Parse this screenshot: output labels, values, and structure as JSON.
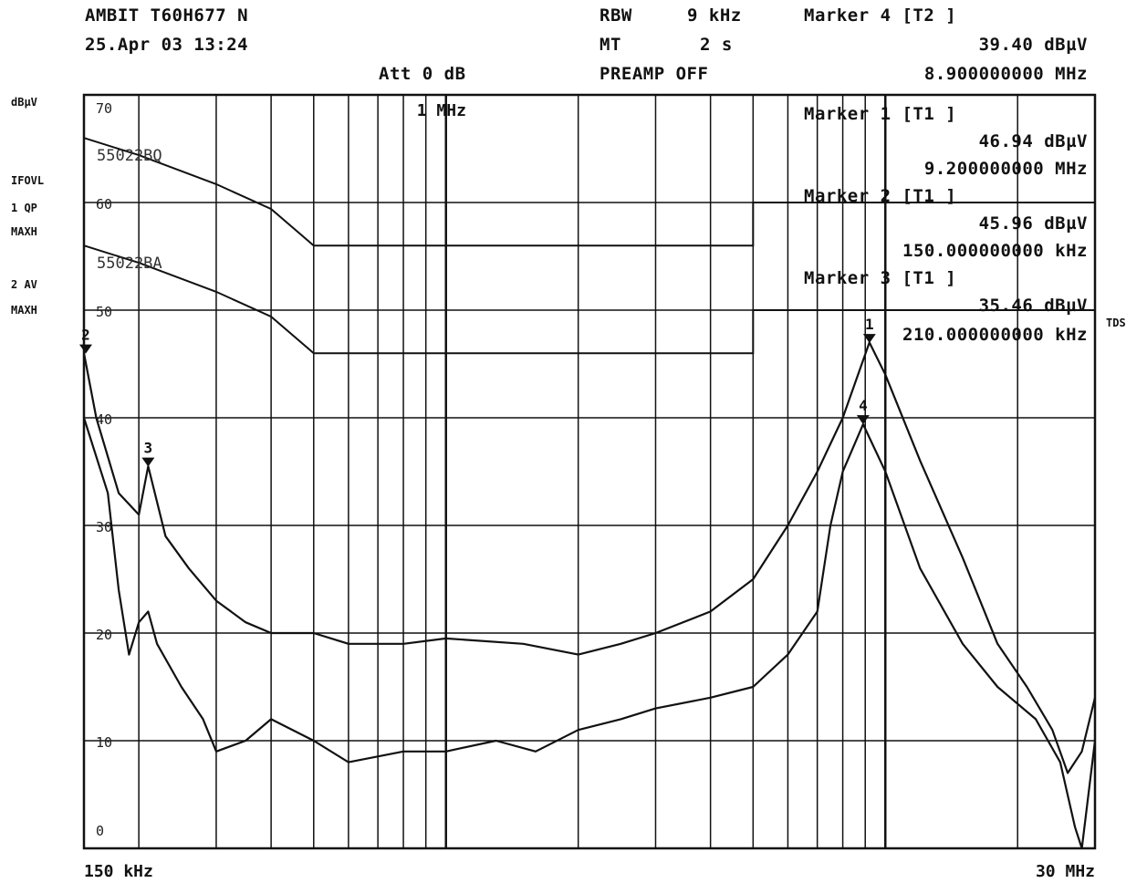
{
  "header": {
    "device": "AMBIT T60H677 N",
    "date": "25.Apr 03 13:24",
    "att": "Att 0 dB",
    "rbw_label": "RBW",
    "rbw_value": "9 kHz",
    "mt_label": "MT",
    "mt_value": "2 s",
    "preamp": "PREAMP OFF",
    "marker_title": "Marker 4 [T2 ]",
    "marker_level": "39.40 dBµV",
    "marker_freq": "8.900000000 MHz"
  },
  "side": {
    "unit": "dBµV",
    "ifovl": "IFOVL",
    "trace1": "1 QP",
    "trace1_mode": "MAXH",
    "trace2": "2 AV",
    "trace2_mode": "MAXH",
    "tds": "TDS"
  },
  "markers_box": [
    {
      "title": "Marker 1 [T1 ]",
      "level": "46.94 dBµV",
      "freq": "9.200000000 MHz"
    },
    {
      "title": "Marker 2 [T1 ]",
      "level": "45.96 dBµV",
      "freq": "150.000000000 kHz"
    },
    {
      "title": "Marker 3 [T1 ]",
      "level": "35.46 dBµV",
      "freq": "210.000000000 kHz"
    }
  ],
  "colors": {
    "trace": "#111111",
    "grid": "#111111",
    "background": "#ffffff"
  },
  "chart_data": {
    "type": "line",
    "title": "",
    "xlabel": "",
    "ylabel": "dBµV",
    "x_scale": "log",
    "xlim_mhz": [
      0.15,
      30
    ],
    "ylim": [
      0,
      70
    ],
    "x_tick_labels": [
      "150 kHz",
      "1 MHz",
      "30 MHz"
    ],
    "y_tick_labels": [
      "70",
      "60",
      "50",
      "40",
      "30",
      "20",
      "10",
      "0"
    ],
    "grid": true,
    "limit_lines": [
      {
        "name": "55022BQ",
        "points_mhz_db": [
          [
            0.15,
            66
          ],
          [
            0.2,
            64.4
          ],
          [
            0.3,
            61.7
          ],
          [
            0.4,
            59.4
          ],
          [
            0.5,
            56
          ],
          [
            5,
            56
          ],
          [
            5,
            60
          ],
          [
            30,
            60
          ]
        ]
      },
      {
        "name": "55022BA",
        "points_mhz_db": [
          [
            0.15,
            56
          ],
          [
            0.2,
            54.4
          ],
          [
            0.3,
            51.7
          ],
          [
            0.4,
            49.4
          ],
          [
            0.5,
            46
          ],
          [
            5,
            46
          ],
          [
            5,
            50
          ],
          [
            30,
            50
          ]
        ]
      }
    ],
    "series": [
      {
        "name": "",
        "points_mhz_db": [
          [
            0.15,
            46
          ],
          [
            0.16,
            40
          ],
          [
            0.18,
            33
          ],
          [
            0.2,
            31
          ],
          [
            0.21,
            35.5
          ],
          [
            0.23,
            29
          ],
          [
            0.26,
            26
          ],
          [
            0.3,
            23
          ],
          [
            0.35,
            21
          ],
          [
            0.4,
            20
          ],
          [
            0.5,
            20
          ],
          [
            0.6,
            19
          ],
          [
            0.8,
            19
          ],
          [
            1,
            19.5
          ],
          [
            1.5,
            19
          ],
          [
            2,
            18
          ],
          [
            2.5,
            19
          ],
          [
            3,
            20
          ],
          [
            4,
            22
          ],
          [
            5,
            25
          ],
          [
            6,
            30
          ],
          [
            7,
            35
          ],
          [
            8,
            40
          ],
          [
            9.2,
            47
          ],
          [
            10,
            44
          ],
          [
            12,
            36
          ],
          [
            15,
            27
          ],
          [
            18,
            19
          ],
          [
            21,
            15
          ],
          [
            24,
            11
          ],
          [
            26,
            7
          ],
          [
            28,
            9
          ],
          [
            30,
            14
          ]
        ]
      },
      {
        "name": "",
        "points_mhz_db": [
          [
            0.15,
            40
          ],
          [
            0.17,
            33
          ],
          [
            0.18,
            24
          ],
          [
            0.19,
            18
          ],
          [
            0.2,
            21
          ],
          [
            0.21,
            22
          ],
          [
            0.22,
            19
          ],
          [
            0.25,
            15
          ],
          [
            0.28,
            12
          ],
          [
            0.3,
            9
          ],
          [
            0.35,
            10
          ],
          [
            0.4,
            12
          ],
          [
            0.5,
            10
          ],
          [
            0.6,
            8
          ],
          [
            0.8,
            9
          ],
          [
            1,
            9
          ],
          [
            1.3,
            10
          ],
          [
            1.6,
            9
          ],
          [
            2,
            11
          ],
          [
            2.5,
            12
          ],
          [
            3,
            13
          ],
          [
            4,
            14
          ],
          [
            5,
            15
          ],
          [
            6,
            18
          ],
          [
            7,
            22
          ],
          [
            7.5,
            30
          ],
          [
            8,
            35
          ],
          [
            8.9,
            39.4
          ],
          [
            10,
            35
          ],
          [
            12,
            26
          ],
          [
            15,
            19
          ],
          [
            18,
            15
          ],
          [
            22,
            12
          ],
          [
            25,
            8
          ],
          [
            27,
            2
          ],
          [
            28,
            0
          ],
          [
            30,
            10
          ]
        ]
      }
    ],
    "markers": [
      {
        "label": "1",
        "mhz": 9.2,
        "db": 46.94
      },
      {
        "label": "2",
        "mhz": 0.15,
        "db": 45.96
      },
      {
        "label": "3",
        "mhz": 0.21,
        "db": 35.46
      },
      {
        "label": "4",
        "mhz": 8.9,
        "db": 39.4
      }
    ]
  }
}
